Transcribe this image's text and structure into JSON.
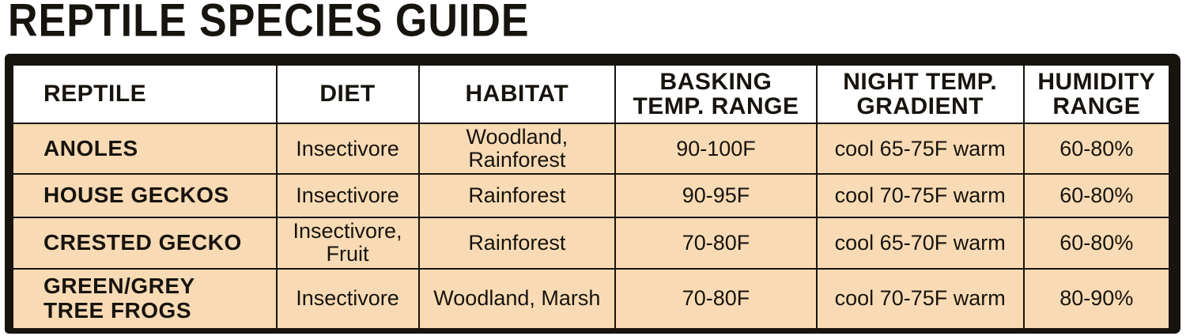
{
  "page": {
    "title": "REPTILE SPECIES GUIDE"
  },
  "colors": {
    "ink": "#17130e",
    "cell_background": "#f8dbb4",
    "header_background": "#ffffff"
  },
  "table": {
    "headers": [
      {
        "label": "REPTILE"
      },
      {
        "label": "DIET"
      },
      {
        "label": "HABITAT"
      },
      {
        "label": "BASKING\nTEMP. RANGE"
      },
      {
        "label": "NIGHT TEMP.\nGRADIENT"
      },
      {
        "label": "HUMIDITY\nRANGE"
      }
    ],
    "rows": [
      {
        "reptile": "ANOLES",
        "diet": "Insectivore",
        "habitat": "Woodland,\nRainforest",
        "basking": "90-100F",
        "night": "cool 65-75F warm",
        "humidity": "60-80%"
      },
      {
        "reptile": "HOUSE GECKOS",
        "diet": "Insectivore",
        "habitat": "Rainforest",
        "basking": "90-95F",
        "night": "cool 70-75F warm",
        "humidity": "60-80%"
      },
      {
        "reptile": "CRESTED GECKO",
        "diet": "Insectivore,\nFruit",
        "habitat": "Rainforest",
        "basking": "70-80F",
        "night": "cool 65-70F warm",
        "humidity": "60-80%"
      },
      {
        "reptile": "GREEN/GREY\nTREE FROGS",
        "diet": "Insectivore",
        "habitat": "Woodland, Marsh",
        "basking": "70-80F",
        "night": "cool 70-75F warm",
        "humidity": "80-90%"
      }
    ]
  }
}
